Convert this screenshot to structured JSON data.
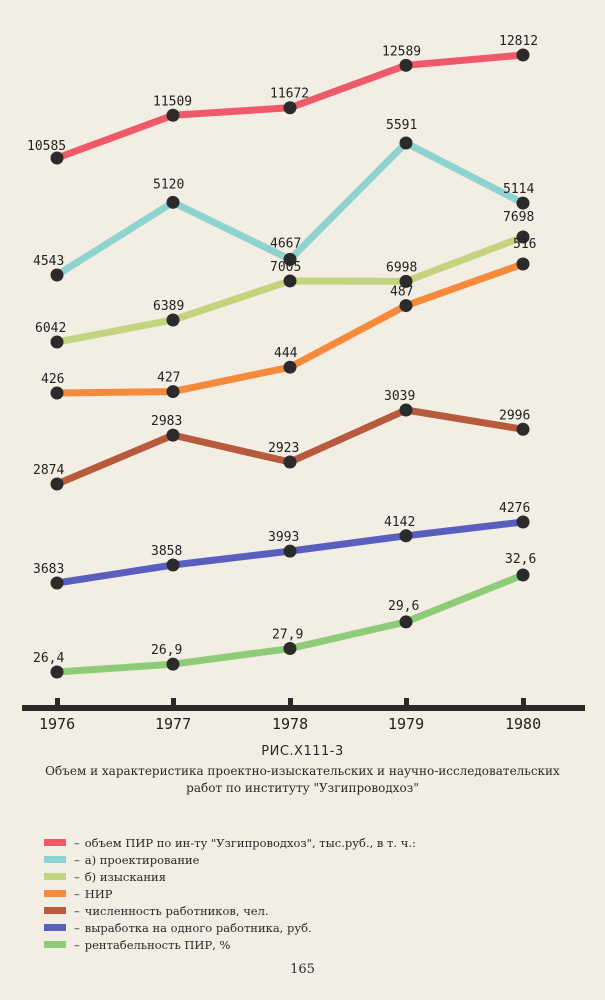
{
  "chart_data": {
    "type": "line",
    "categories": [
      "1976",
      "1977",
      "1978",
      "1979",
      "1980"
    ],
    "series": [
      {
        "name": "объем ПИР по ин-ту \"Узгипроводхоз\", тыс.руб., в т. ч.:",
        "color": "#ee5a6a",
        "values": [
          10585,
          11509,
          11672,
          12589,
          12812
        ],
        "labels": [
          "10585",
          "11509",
          "11672",
          "12589",
          "12812"
        ]
      },
      {
        "name": "а) проектирование",
        "color": "#8fd3d0",
        "values": [
          4543,
          5120,
          4667,
          5591,
          5114
        ],
        "labels": [
          "4543",
          "5120",
          "4667",
          "5591",
          "5114"
        ]
      },
      {
        "name": "б) изыскания",
        "color": "#c3d47e",
        "values": [
          6042,
          6389,
          7005,
          6998,
          7698
        ],
        "labels": [
          "6042",
          "6389",
          "7005",
          "6998",
          "7698"
        ]
      },
      {
        "name": "НИР",
        "color": "#f58a3c",
        "values": [
          426,
          427,
          444,
          487,
          516
        ],
        "labels": [
          "426",
          "427",
          "444",
          "487",
          "516"
        ]
      },
      {
        "name": "численность работников, чел.",
        "color": "#b85a3e",
        "values": [
          2874,
          2983,
          2923,
          3039,
          2996
        ],
        "labels": [
          "2874",
          "2983",
          "2923",
          "3039",
          "2996"
        ]
      },
      {
        "name": "выработка на одного работника, руб.",
        "color": "#5a5fbf",
        "values": [
          3683,
          3858,
          3993,
          4142,
          4276
        ],
        "labels": [
          "3683",
          "3858",
          "3993",
          "4142",
          "4276"
        ]
      },
      {
        "name": "рентабельность ПИР, %",
        "color": "#8fcc7a",
        "values": [
          26.4,
          26.9,
          27.9,
          29.6,
          32.6
        ],
        "labels": [
          "26,4",
          "26,9",
          "27,9",
          "29,6",
          "32,6"
        ]
      }
    ],
    "legend_position": "bottom",
    "grid": false
  },
  "caption": {
    "title": "РИС.Х111-3",
    "text": "Объем и характеристика проектно-изыскательских и научно-исследовательских работ по институту \"Узгипроводхоз\""
  },
  "legend_dash": "–",
  "page_number": "165"
}
